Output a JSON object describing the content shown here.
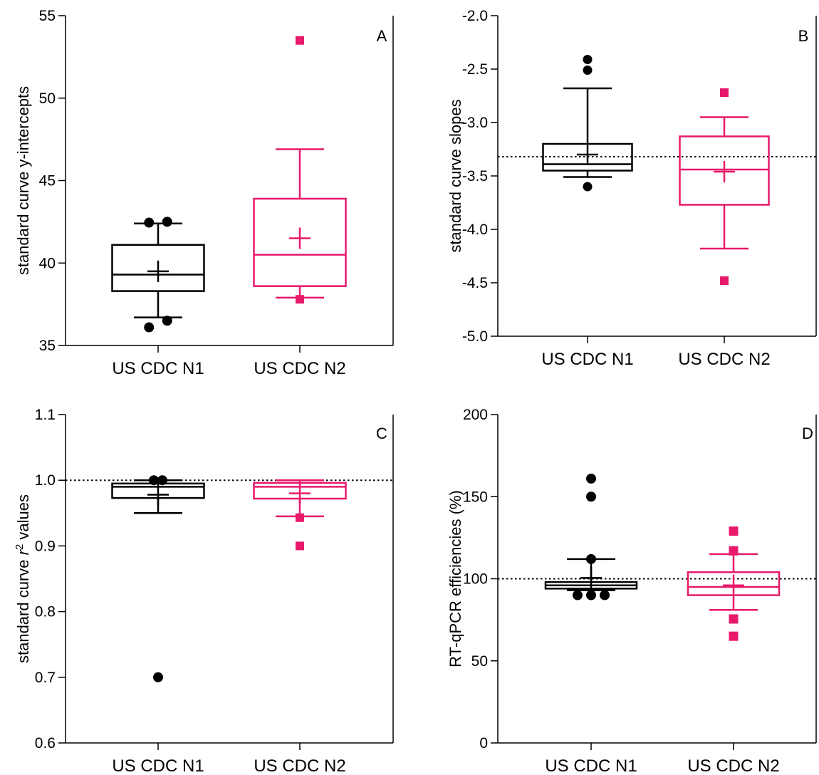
{
  "colors": {
    "n1": "#000000",
    "n2": "#e8196a",
    "axis": "#000000"
  },
  "chart_data": [
    {
      "panel": "A",
      "type": "box",
      "ylabel": "standard curve y-intercepts",
      "ylabel_html": "",
      "ylim": [
        35,
        55
      ],
      "yticks": [
        35,
        40,
        45,
        50,
        55
      ],
      "ytick_labels": [
        "35",
        "40",
        "45",
        "50",
        "55"
      ],
      "reference_line": null,
      "categories": [
        "US CDC N1",
        "US CDC N2"
      ],
      "series": [
        {
          "category": "US CDC N1",
          "color": "black",
          "marker": "circle",
          "whisker_low": 36.7,
          "q1": 38.3,
          "median": 39.3,
          "q3": 41.1,
          "whisker_high": 42.4,
          "mean": 39.5,
          "outliers": [
            [
              -0.3,
              42.45
            ],
            [
              0.3,
              42.5
            ],
            [
              -0.3,
              36.1
            ],
            [
              0.3,
              36.5
            ]
          ]
        },
        {
          "category": "US CDC N2",
          "color": "pink",
          "marker": "square",
          "whisker_low": 37.9,
          "q1": 38.6,
          "median": 40.5,
          "q3": 43.9,
          "whisker_high": 46.9,
          "mean": 41.5,
          "outliers": [
            [
              0,
              53.5
            ],
            [
              0,
              37.8
            ]
          ]
        }
      ]
    },
    {
      "panel": "B",
      "type": "box",
      "ylabel": "standard curve slopes",
      "ylabel_html": "",
      "ylim": [
        -5.0,
        -2.0
      ],
      "yticks": [
        -5.0,
        -4.5,
        -4.0,
        -3.5,
        -3.0,
        -2.5,
        -2.0
      ],
      "ytick_labels": [
        "-5.0",
        "-4.5",
        "-4.0",
        "-3.5",
        "-3.0",
        "-2.5",
        "-2.0"
      ],
      "reference_line": -3.32,
      "categories": [
        "US CDC N1",
        "US CDC N2"
      ],
      "series": [
        {
          "category": "US CDC N1",
          "color": "black",
          "marker": "circle",
          "whisker_low": -3.51,
          "q1": -3.45,
          "median": -3.39,
          "q3": -3.2,
          "whisker_high": -2.68,
          "mean": -3.3,
          "outliers": [
            [
              0,
              -2.41
            ],
            [
              0,
              -2.51
            ],
            [
              0,
              -3.6
            ]
          ]
        },
        {
          "category": "US CDC N2",
          "color": "pink",
          "marker": "square",
          "whisker_low": -4.18,
          "q1": -3.77,
          "median": -3.44,
          "q3": -3.13,
          "whisker_high": -2.95,
          "mean": -3.46,
          "outliers": [
            [
              0,
              -2.72
            ],
            [
              0,
              -4.48
            ]
          ]
        }
      ]
    },
    {
      "panel": "C",
      "type": "box",
      "ylabel": "standard curve r² values",
      "ylabel_html": "standard curve <tspan font-style='italic'>r</tspan><tspan dy='-8' font-size='15'>2</tspan><tspan dy='8'> values</tspan>",
      "ylim": [
        0.6,
        1.1
      ],
      "yticks": [
        0.6,
        0.7,
        0.8,
        0.9,
        1.0,
        1.1
      ],
      "ytick_labels": [
        "0.6",
        "0.7",
        "0.8",
        "0.9",
        "1.0",
        "1.1"
      ],
      "reference_line": 1.0,
      "categories": [
        "US CDC N1",
        "US CDC N2"
      ],
      "series": [
        {
          "category": "US CDC N1",
          "color": "black",
          "marker": "circle",
          "whisker_low": 0.95,
          "q1": 0.973,
          "median": 0.99,
          "q3": 0.995,
          "whisker_high": 1.0,
          "mean": 0.978,
          "outliers": [
            [
              -0.3,
              1.0
            ],
            [
              0.3,
              1.0
            ],
            [
              0,
              0.7
            ]
          ]
        },
        {
          "category": "US CDC N2",
          "color": "pink",
          "marker": "square",
          "whisker_low": 0.945,
          "q1": 0.972,
          "median": 0.99,
          "q3": 0.996,
          "whisker_high": 1.0,
          "mean": 0.98,
          "outliers": [
            [
              0,
              0.943
            ],
            [
              0,
              0.9
            ]
          ]
        }
      ]
    },
    {
      "panel": "D",
      "type": "box",
      "ylabel": "RT-qPCR efficiencies (%)",
      "ylabel_html": "",
      "ylim": [
        0,
        200
      ],
      "yticks": [
        0,
        50,
        100,
        150,
        200
      ],
      "ytick_labels": [
        "0",
        "50",
        "100",
        "150",
        "200"
      ],
      "reference_line": 100,
      "categories": [
        "US CDC N1",
        "US CDC N2"
      ],
      "series": [
        {
          "category": "US CDC N1",
          "color": "black",
          "marker": "circle",
          "whisker_low": 93,
          "q1": 94,
          "median": 96,
          "q3": 98,
          "whisker_high": 112,
          "mean": 100.5,
          "outliers": [
            [
              0,
              161
            ],
            [
              0,
              150
            ],
            [
              0,
              112
            ],
            [
              -0.4,
              90
            ],
            [
              0,
              90
            ],
            [
              0.4,
              90
            ]
          ]
        },
        {
          "category": "US CDC N2",
          "color": "pink",
          "marker": "square",
          "whisker_low": 81,
          "q1": 90,
          "median": 95,
          "q3": 104,
          "whisker_high": 115,
          "mean": 96,
          "outliers": [
            [
              0,
              129
            ],
            [
              0,
              117
            ],
            [
              0,
              75.5
            ],
            [
              0,
              65
            ]
          ]
        }
      ]
    }
  ]
}
